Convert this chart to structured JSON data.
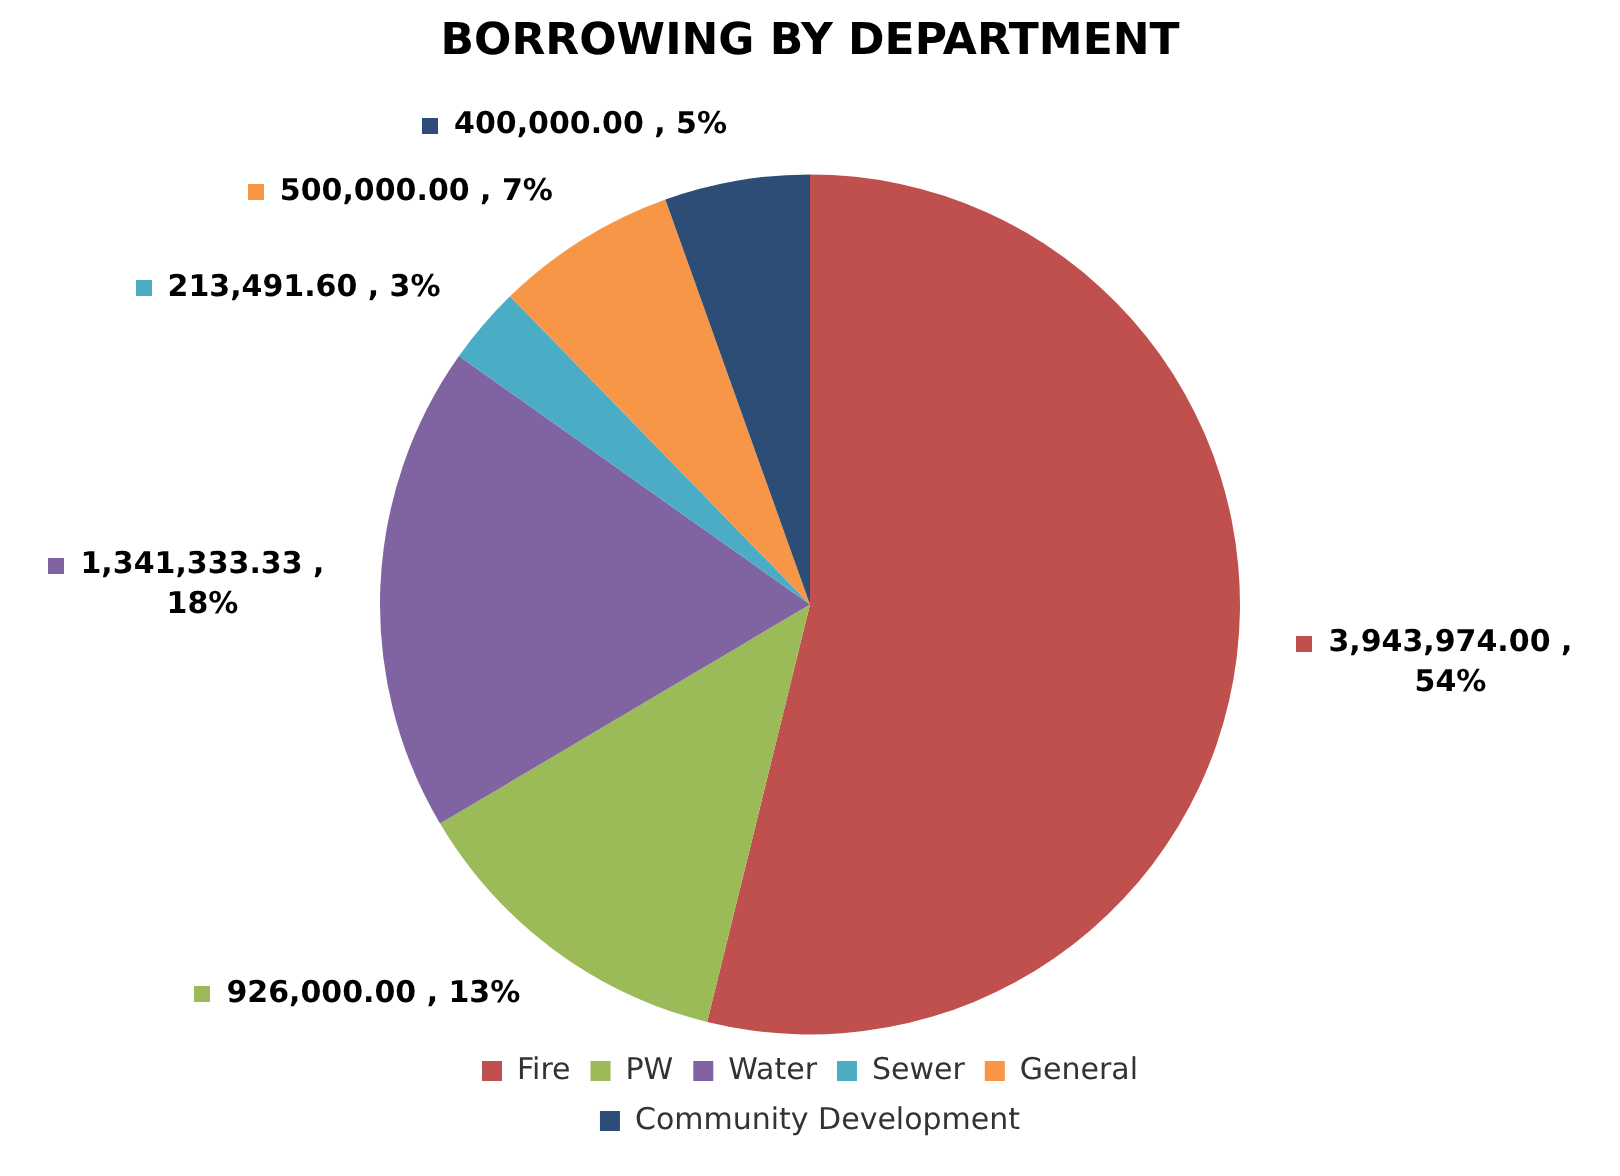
{
  "chart_data": {
    "type": "pie",
    "title": "BORROWING BY DEPARTMENT",
    "categories": [
      "Fire",
      "PW",
      "Water",
      "Sewer",
      "General",
      "Community Development"
    ],
    "values": [
      3943974.0,
      926000.0,
      1341333.33,
      213491.6,
      500000.0,
      400000.0
    ],
    "colors": [
      "#c0504d",
      "#9bbb59",
      "#8064a2",
      "#4bacc6",
      "#f79646",
      "#2c4d75"
    ],
    "value_labels": [
      "3,943,974.00 , 54%",
      "926,000.00 , 13%",
      "1,341,333.33 , 18%",
      "213,491.60 , 3%",
      "500,000.00 , 7%",
      "400,000.00 , 5%"
    ],
    "legend": "bottom"
  }
}
